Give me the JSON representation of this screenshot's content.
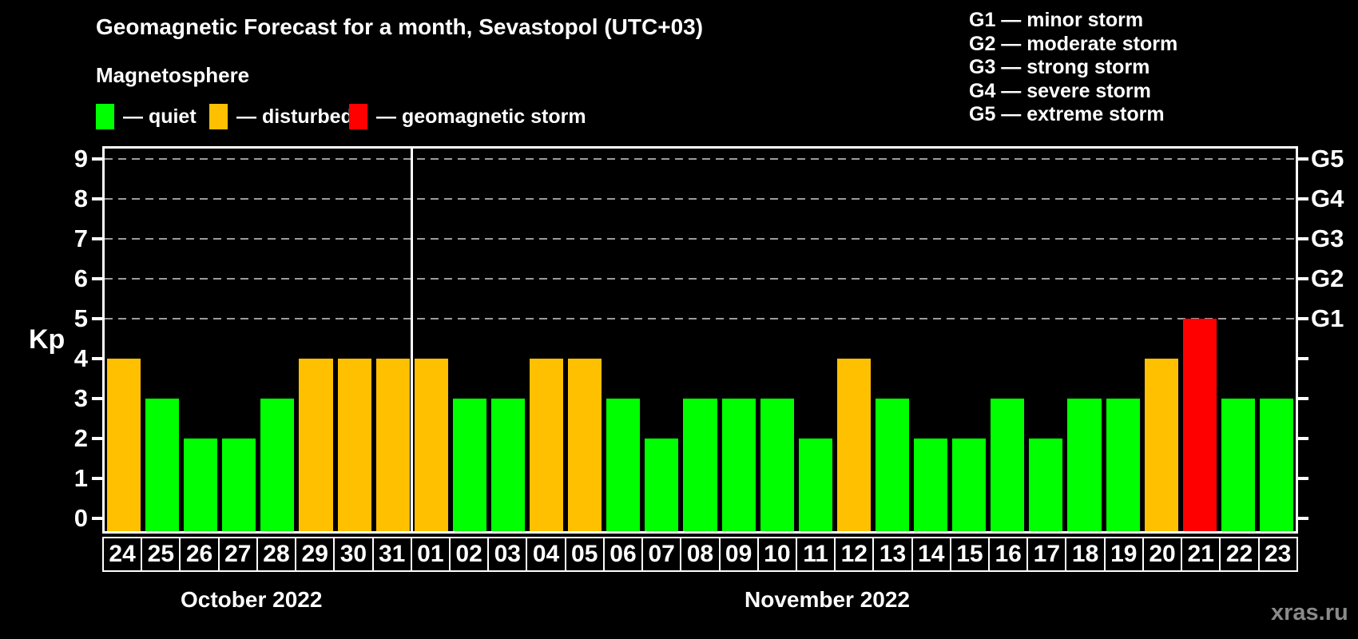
{
  "title": "Geomagnetic Forecast for a month, Sevastopol (UTC+03)",
  "subtitle": "Magnetosphere",
  "status_legend": [
    {
      "label": "— quiet",
      "status": "quiet",
      "color": "#00ff00"
    },
    {
      "label": "— disturbed",
      "status": "disturbed",
      "color": "#ffc000"
    },
    {
      "label": "— geomagnetic storm",
      "status": "storm",
      "color": "#ff0000"
    }
  ],
  "g_legend": [
    "G1 — minor storm",
    "G2 — moderate storm",
    "G3 — strong storm",
    "G4 — severe storm",
    "G5 — extreme storm"
  ],
  "watermark": "xras.ru",
  "chart_data": {
    "type": "bar",
    "title": "Geomagnetic Forecast for a month, Sevastopol (UTC+03)",
    "ylabel": "Kp",
    "ylim": [
      0,
      9.3
    ],
    "yticks": [
      0,
      1,
      2,
      3,
      4,
      5,
      6,
      7,
      8,
      9
    ],
    "gridlines_at": [
      5,
      6,
      7,
      8,
      9
    ],
    "grid": "horizontal dashed lines at storm levels G1-G5 only",
    "right_axis_labels": [
      {
        "value": 5,
        "label": "G1"
      },
      {
        "value": 6,
        "label": "G2"
      },
      {
        "value": 7,
        "label": "G3"
      },
      {
        "value": 8,
        "label": "G4"
      },
      {
        "value": 9,
        "label": "G5"
      }
    ],
    "months": [
      {
        "label": "October 2022",
        "days": [
          "24",
          "25",
          "26",
          "27",
          "28",
          "29",
          "30",
          "31"
        ]
      },
      {
        "label": "November 2022",
        "days": [
          "01",
          "02",
          "03",
          "04",
          "05",
          "06",
          "07",
          "08",
          "09",
          "10",
          "11",
          "12",
          "13",
          "14",
          "15",
          "16",
          "17",
          "18",
          "19",
          "20",
          "21",
          "22",
          "23"
        ]
      }
    ],
    "categories": [
      "24",
      "25",
      "26",
      "27",
      "28",
      "29",
      "30",
      "31",
      "01",
      "02",
      "03",
      "04",
      "05",
      "06",
      "07",
      "08",
      "09",
      "10",
      "11",
      "12",
      "13",
      "14",
      "15",
      "16",
      "17",
      "18",
      "19",
      "20",
      "21",
      "22",
      "23"
    ],
    "values": [
      4,
      3,
      2,
      2,
      3,
      4,
      4,
      4,
      4,
      3,
      3,
      4,
      4,
      3,
      2,
      3,
      3,
      3,
      2,
      4,
      3,
      2,
      2,
      3,
      2,
      3,
      3,
      4,
      5,
      3,
      3
    ],
    "statuses": [
      "disturbed",
      "quiet",
      "quiet",
      "quiet",
      "quiet",
      "disturbed",
      "disturbed",
      "disturbed",
      "disturbed",
      "quiet",
      "quiet",
      "disturbed",
      "disturbed",
      "quiet",
      "quiet",
      "quiet",
      "quiet",
      "quiet",
      "quiet",
      "disturbed",
      "quiet",
      "quiet",
      "quiet",
      "quiet",
      "quiet",
      "quiet",
      "quiet",
      "disturbed",
      "storm",
      "quiet",
      "quiet"
    ],
    "status_colors": {
      "quiet": "#00ff00",
      "disturbed": "#ffc000",
      "storm": "#ff0000"
    }
  }
}
